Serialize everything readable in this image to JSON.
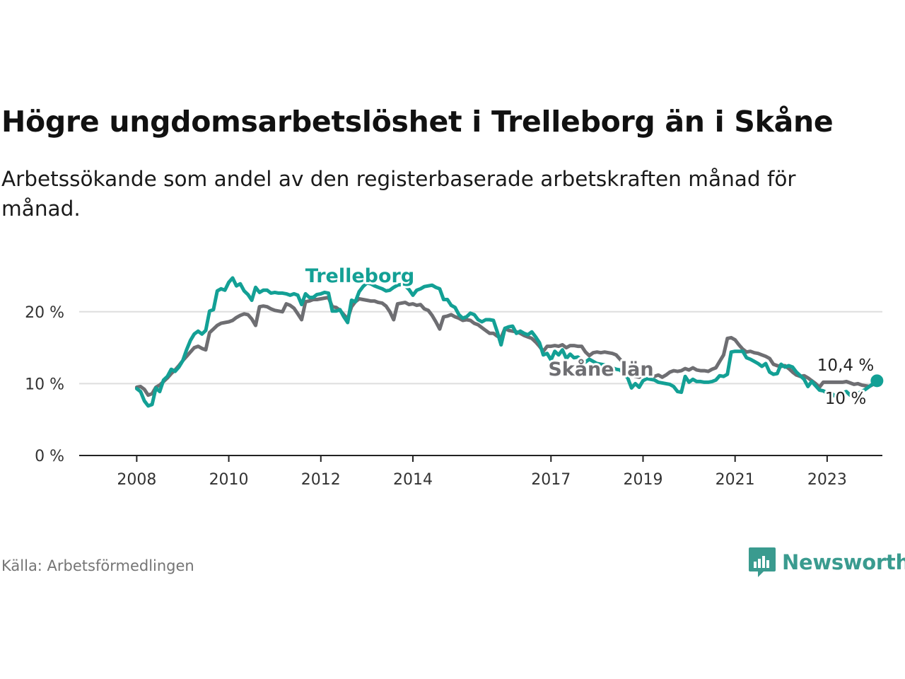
{
  "title": "Högre ungdomsarbetslöshet i Trelleborg än i Skåne",
  "subtitle": "Arbetssökande som andel av den registerbaserade arbetskraften månad för månad.",
  "source": "Källa: Arbetsförmedlingen",
  "brand": {
    "name": "Newsworthy",
    "icon": "bar-chart-speech-bubble-icon",
    "color": "#3a9b8f"
  },
  "colors": {
    "trelleborg": "#13a095",
    "skane": "#6e6e72",
    "grid": "#dedede",
    "axis": "#222222",
    "tick_text": "#333333"
  },
  "chart_data": {
    "type": "line",
    "title": "Högre ungdomsarbetslöshet i Trelleborg än i Skåne",
    "xlabel": "",
    "ylabel": "",
    "unit": "%",
    "x_start": 2008.0,
    "x_step": 0.08333,
    "xlim": [
      2006.75,
      2024.2
    ],
    "ylim": [
      0,
      25
    ],
    "yticks": [
      0,
      10,
      20
    ],
    "ytick_labels": [
      "0 %",
      "10 %",
      "20 %"
    ],
    "xticks": [
      2008,
      2010,
      2012,
      2014,
      2017,
      2019,
      2021,
      2023
    ],
    "xtick_labels": [
      "2008",
      "2010",
      "2012",
      "2014",
      "2017",
      "2019",
      "2021",
      "2023"
    ],
    "grid": true,
    "series": [
      {
        "name": "Trelleborg",
        "label": "Trelleborg",
        "end_label": "10,4 %",
        "values": [
          9.3,
          8.9,
          7.6,
          6.9,
          7.1,
          9.4,
          8.9,
          10.5,
          11.0,
          12.0,
          11.7,
          12.3,
          13.2,
          14.7,
          16.0,
          16.9,
          17.3,
          16.9,
          17.4,
          20.1,
          20.3,
          22.9,
          23.2,
          23.0,
          24.1,
          24.7,
          23.6,
          23.9,
          22.9,
          22.4,
          21.6,
          23.4,
          22.7,
          23.0,
          23.0,
          22.6,
          22.7,
          22.6,
          22.6,
          22.5,
          22.3,
          22.5,
          22.3,
          21.0,
          22.5,
          22.0,
          22.0,
          22.4,
          22.5,
          22.7,
          22.6,
          20.1,
          20.1,
          20.3,
          19.3,
          18.5,
          21.6,
          21.4,
          22.8,
          23.5,
          24.0,
          23.9,
          23.6,
          23.4,
          23.2,
          22.9,
          23.0,
          23.4,
          23.7,
          23.8,
          23.6,
          23.1,
          22.3,
          23.0,
          23.2,
          23.5,
          23.6,
          23.7,
          23.4,
          23.2,
          21.7,
          21.7,
          20.9,
          20.6,
          19.6,
          19.1,
          19.3,
          19.8,
          19.6,
          18.9,
          18.6,
          18.9,
          18.9,
          18.8,
          17.2,
          15.4,
          17.7,
          17.9,
          18.0,
          17.0,
          17.3,
          17.0,
          16.8,
          17.2,
          16.5,
          15.7,
          14.0,
          14.2,
          13.3,
          14.5,
          14.0,
          14.7,
          13.5,
          14.1,
          13.6,
          13.7,
          13.3,
          13.0,
          13.4,
          13.1,
          12.8,
          12.7,
          12.6,
          12.4,
          12.2,
          12.0,
          11.9,
          11.4,
          10.8,
          9.4,
          10.0,
          9.5,
          10.4,
          10.7,
          10.6,
          10.5,
          10.2,
          10.1,
          10.0,
          9.9,
          9.6,
          8.9,
          8.8,
          11.0,
          10.2,
          10.6,
          10.3,
          10.3,
          10.2,
          10.2,
          10.3,
          10.5,
          11.1,
          11.0,
          11.3,
          14.4,
          14.5,
          14.5,
          14.5,
          13.6,
          13.4,
          13.1,
          12.8,
          12.4,
          12.8,
          11.6,
          11.3,
          11.4,
          12.7,
          12.3,
          12.5,
          12.3,
          11.6,
          11.1,
          10.6,
          9.6,
          10.3,
          9.7,
          9.1,
          9.0,
          8.7,
          8.7,
          8.3,
          8.4,
          8.7,
          8.9,
          8.4,
          8.2,
          8.6,
          8.9,
          9.2,
          9.6,
          10.0,
          10.4
        ]
      },
      {
        "name": "Skåne län",
        "label": "Skåne län",
        "end_label": "10 %",
        "values": [
          9.5,
          9.6,
          9.2,
          8.4,
          8.6,
          9.5,
          9.8,
          10.3,
          10.8,
          11.4,
          11.9,
          12.5,
          13.2,
          13.8,
          14.4,
          15.0,
          15.2,
          14.9,
          14.7,
          17.1,
          17.6,
          18.1,
          18.4,
          18.5,
          18.6,
          18.8,
          19.2,
          19.5,
          19.7,
          19.6,
          19.0,
          18.1,
          20.7,
          20.8,
          20.7,
          20.4,
          20.2,
          20.1,
          20.0,
          21.1,
          20.9,
          20.5,
          19.7,
          18.9,
          21.4,
          21.5,
          21.7,
          21.7,
          21.8,
          21.9,
          22.0,
          20.7,
          20.6,
          20.2,
          19.6,
          19.0,
          20.7,
          21.4,
          21.8,
          21.7,
          21.6,
          21.5,
          21.5,
          21.3,
          21.2,
          20.8,
          20.0,
          18.9,
          21.1,
          21.2,
          21.3,
          21.0,
          21.1,
          20.9,
          21.0,
          20.4,
          20.2,
          19.5,
          18.6,
          17.6,
          19.3,
          19.4,
          19.6,
          19.3,
          19.1,
          18.8,
          18.9,
          18.8,
          18.4,
          18.2,
          17.8,
          17.4,
          17.0,
          17.0,
          16.6,
          16.4,
          17.7,
          17.4,
          17.3,
          17.2,
          17.0,
          16.7,
          16.5,
          16.3,
          15.8,
          15.2,
          14.5,
          15.2,
          15.2,
          15.3,
          15.2,
          15.4,
          15.0,
          15.3,
          15.3,
          15.2,
          15.2,
          14.4,
          13.9,
          14.3,
          14.4,
          14.3,
          14.4,
          14.3,
          14.2,
          14.0,
          13.4,
          12.9,
          12.2,
          11.6,
          11.0,
          10.9,
          11.2,
          11.4,
          11.2,
          11.0,
          11.2,
          10.9,
          11.2,
          11.6,
          11.8,
          11.7,
          11.8,
          12.1,
          11.9,
          12.2,
          11.9,
          11.8,
          11.8,
          11.7,
          12.0,
          12.2,
          13.1,
          14.0,
          16.3,
          16.4,
          16.1,
          15.4,
          14.8,
          14.4,
          14.5,
          14.3,
          14.2,
          14.0,
          13.8,
          13.5,
          12.7,
          12.5,
          12.4,
          12.5,
          12.1,
          11.6,
          11.2,
          11.0,
          11.1,
          10.8,
          10.4,
          10.0,
          9.5,
          10.2,
          10.2,
          10.2,
          10.2,
          10.2,
          10.2,
          10.3,
          10.1,
          9.9,
          10.0,
          9.8,
          9.7,
          9.6,
          9.9,
          10.0
        ]
      }
    ]
  }
}
